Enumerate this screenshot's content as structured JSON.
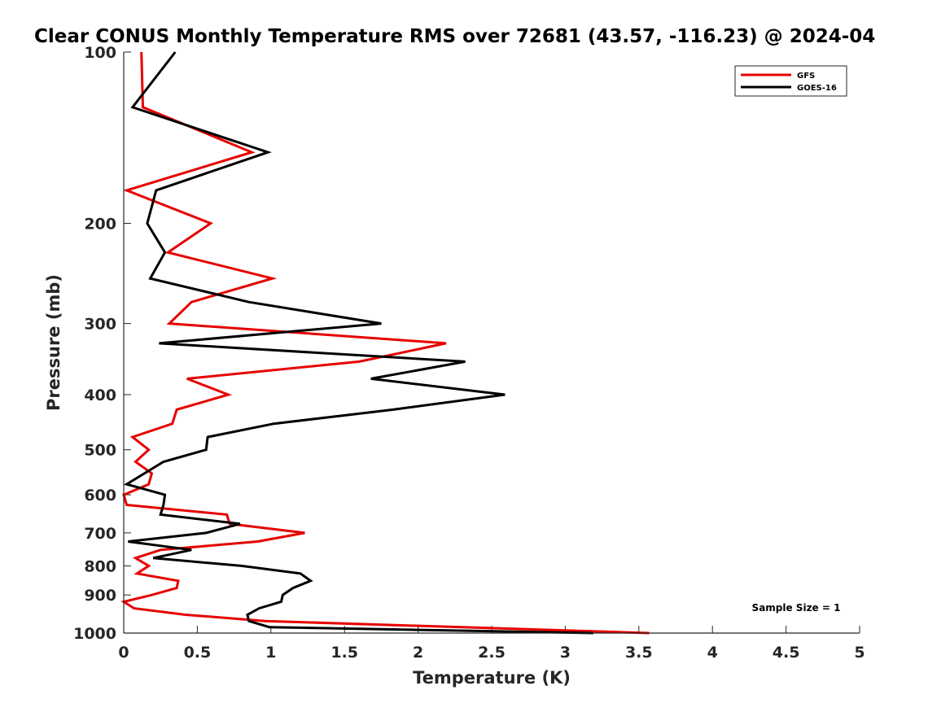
{
  "chart_data": {
    "type": "line",
    "title": "Clear CONUS Monthly Temperature RMS over 72681 (43.57, -116.23) @ 2024-04",
    "xlabel": "Temperature (K)",
    "ylabel": "Pressure (mb)",
    "xlim": [
      0,
      5
    ],
    "ylim": [
      100,
      1000
    ],
    "yscale": "log",
    "y_reversed": true,
    "xticks": [
      0,
      0.5,
      1,
      1.5,
      2,
      2.5,
      3,
      3.5,
      4,
      4.5,
      5
    ],
    "xtick_labels": [
      "0",
      "0.5",
      "1",
      "1.5",
      "2",
      "2.5",
      "3",
      "3.5",
      "4",
      "4.5",
      "5"
    ],
    "yticks": [
      100,
      200,
      300,
      400,
      500,
      600,
      700,
      800,
      900,
      1000
    ],
    "ytick_labels": [
      "100",
      "200",
      "300",
      "400",
      "500",
      "600",
      "700",
      "800",
      "900",
      "1000"
    ],
    "grid": false,
    "legend_position": "top-right",
    "annotation": "Sample Size = 1",
    "series": [
      {
        "name": "GFS",
        "color": "#e60000",
        "points": [
          {
            "x": 0.12,
            "y": 100
          },
          {
            "x": 0.13,
            "y": 125
          },
          {
            "x": 0.87,
            "y": 150
          },
          {
            "x": 0.02,
            "y": 175
          },
          {
            "x": 0.59,
            "y": 200
          },
          {
            "x": 0.3,
            "y": 225
          },
          {
            "x": 1.01,
            "y": 250
          },
          {
            "x": 0.46,
            "y": 275
          },
          {
            "x": 0.31,
            "y": 300
          },
          {
            "x": 2.19,
            "y": 325
          },
          {
            "x": 1.6,
            "y": 350
          },
          {
            "x": 0.43,
            "y": 375
          },
          {
            "x": 0.71,
            "y": 400
          },
          {
            "x": 0.36,
            "y": 425
          },
          {
            "x": 0.33,
            "y": 450
          },
          {
            "x": 0.06,
            "y": 475
          },
          {
            "x": 0.17,
            "y": 500
          },
          {
            "x": 0.08,
            "y": 525
          },
          {
            "x": 0.19,
            "y": 550
          },
          {
            "x": 0.17,
            "y": 575
          },
          {
            "x": 0.0,
            "y": 600
          },
          {
            "x": 0.02,
            "y": 625
          },
          {
            "x": 0.7,
            "y": 650
          },
          {
            "x": 0.72,
            "y": 675
          },
          {
            "x": 1.23,
            "y": 700
          },
          {
            "x": 0.91,
            "y": 725
          },
          {
            "x": 0.25,
            "y": 750
          },
          {
            "x": 0.08,
            "y": 775
          },
          {
            "x": 0.17,
            "y": 800
          },
          {
            "x": 0.09,
            "y": 825
          },
          {
            "x": 0.37,
            "y": 850
          },
          {
            "x": 0.36,
            "y": 875
          },
          {
            "x": 0.19,
            "y": 900
          },
          {
            "x": 0.0,
            "y": 925
          },
          {
            "x": 0.07,
            "y": 950
          },
          {
            "x": 0.42,
            "y": 975
          },
          {
            "x": 0.96,
            "y": 1000
          },
          {
            "x": 3.57,
            "y": 1050
          }
        ]
      },
      {
        "name": "GOES-16",
        "color": "#000000",
        "points": [
          {
            "x": 0.35,
            "y": 100
          },
          {
            "x": 0.06,
            "y": 125
          },
          {
            "x": 0.98,
            "y": 150
          },
          {
            "x": 0.22,
            "y": 175
          },
          {
            "x": 0.16,
            "y": 200
          },
          {
            "x": 0.28,
            "y": 225
          },
          {
            "x": 0.18,
            "y": 250
          },
          {
            "x": 0.85,
            "y": 275
          },
          {
            "x": 1.75,
            "y": 300
          },
          {
            "x": 0.24,
            "y": 325
          },
          {
            "x": 2.32,
            "y": 350
          },
          {
            "x": 1.68,
            "y": 375
          },
          {
            "x": 2.59,
            "y": 400
          },
          {
            "x": 1.83,
            "y": 425
          },
          {
            "x": 1.02,
            "y": 450
          },
          {
            "x": 0.57,
            "y": 475
          },
          {
            "x": 0.56,
            "y": 500
          },
          {
            "x": 0.27,
            "y": 525
          },
          {
            "x": 0.02,
            "y": 575
          },
          {
            "x": 0.28,
            "y": 600
          },
          {
            "x": 0.27,
            "y": 625
          },
          {
            "x": 0.25,
            "y": 650
          },
          {
            "x": 0.79,
            "y": 675
          },
          {
            "x": 0.56,
            "y": 700
          },
          {
            "x": 0.03,
            "y": 725
          },
          {
            "x": 0.46,
            "y": 750
          },
          {
            "x": 0.2,
            "y": 775
          },
          {
            "x": 0.8,
            "y": 800
          },
          {
            "x": 1.2,
            "y": 825
          },
          {
            "x": 1.27,
            "y": 850
          },
          {
            "x": 1.15,
            "y": 875
          },
          {
            "x": 1.08,
            "y": 900
          },
          {
            "x": 1.07,
            "y": 925
          },
          {
            "x": 0.92,
            "y": 950
          },
          {
            "x": 0.84,
            "y": 975
          },
          {
            "x": 0.85,
            "y": 1000
          },
          {
            "x": 0.99,
            "y": 1025
          },
          {
            "x": 3.19,
            "y": 1050
          }
        ]
      }
    ]
  }
}
